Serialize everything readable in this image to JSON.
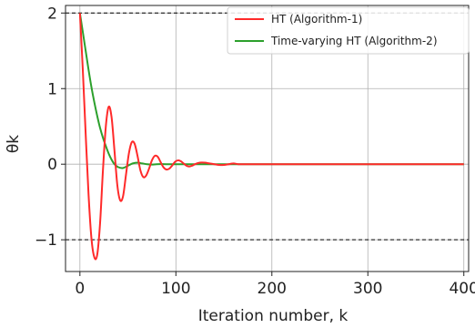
{
  "chart_data": {
    "type": "line",
    "xlabel": "Iteration number, k",
    "ylabel": "θk",
    "xlim": [
      -15,
      405
    ],
    "ylim": [
      -1.42,
      2.1
    ],
    "xticks": [
      0,
      100,
      200,
      300,
      400
    ],
    "yticks": [
      -1,
      0,
      1,
      2
    ],
    "ytick_labels": [
      "−1",
      "0",
      "1",
      "2"
    ],
    "grid": true,
    "legend_position": "top-right",
    "reference_lines": [
      2,
      -1
    ],
    "series": [
      {
        "name": "HT (Algorithm-1)",
        "color": "#ff2a2a",
        "x": [
          0,
          3,
          6,
          9,
          12,
          15,
          18,
          21,
          24,
          27,
          30,
          33,
          36,
          39,
          42,
          45,
          48,
          51,
          54,
          57,
          60,
          63,
          66,
          69,
          72,
          75,
          78,
          81,
          84,
          87,
          90,
          93,
          96,
          99,
          102,
          105,
          108,
          111,
          114,
          117,
          120,
          125,
          130,
          135,
          140,
          145,
          150,
          155,
          160,
          165,
          170,
          175,
          180,
          190,
          200,
          250,
          300,
          350,
          400
        ],
        "y": [
          2.0,
          1.25,
          0.4,
          -0.4,
          -0.98,
          -1.23,
          -1.2,
          -0.78,
          -0.08,
          0.5,
          0.76,
          0.62,
          0.18,
          -0.28,
          -0.48,
          -0.42,
          -0.14,
          0.14,
          0.29,
          0.27,
          0.11,
          -0.08,
          -0.17,
          -0.15,
          -0.06,
          0.05,
          0.11,
          0.1,
          0.03,
          -0.04,
          -0.07,
          -0.06,
          -0.02,
          0.03,
          0.05,
          0.04,
          0.01,
          -0.02,
          -0.03,
          -0.02,
          0.0,
          0.02,
          0.02,
          0.01,
          0.0,
          -0.01,
          -0.01,
          0.0,
          0.01,
          0.0,
          0.0,
          0.0,
          0.0,
          0.0,
          0.0,
          0.0,
          0.0,
          0.0,
          0.0
        ]
      },
      {
        "name": "Time-varying HT (Algorithm-2)",
        "color": "#2ca02c",
        "x": [
          0,
          3,
          6,
          9,
          12,
          15,
          18,
          21,
          24,
          27,
          30,
          33,
          36,
          40,
          45,
          50,
          55,
          60,
          65,
          70,
          75,
          80,
          90,
          100,
          120,
          150,
          200,
          300,
          400
        ],
        "y": [
          2.0,
          1.75,
          1.5,
          1.25,
          1.02,
          0.82,
          0.64,
          0.48,
          0.35,
          0.24,
          0.14,
          0.06,
          0.0,
          -0.04,
          -0.05,
          -0.02,
          0.01,
          0.02,
          0.01,
          0.0,
          -0.005,
          0.0,
          0.0,
          0.0,
          0.0,
          0.0,
          0.0,
          0.0,
          0.0
        ]
      }
    ]
  }
}
